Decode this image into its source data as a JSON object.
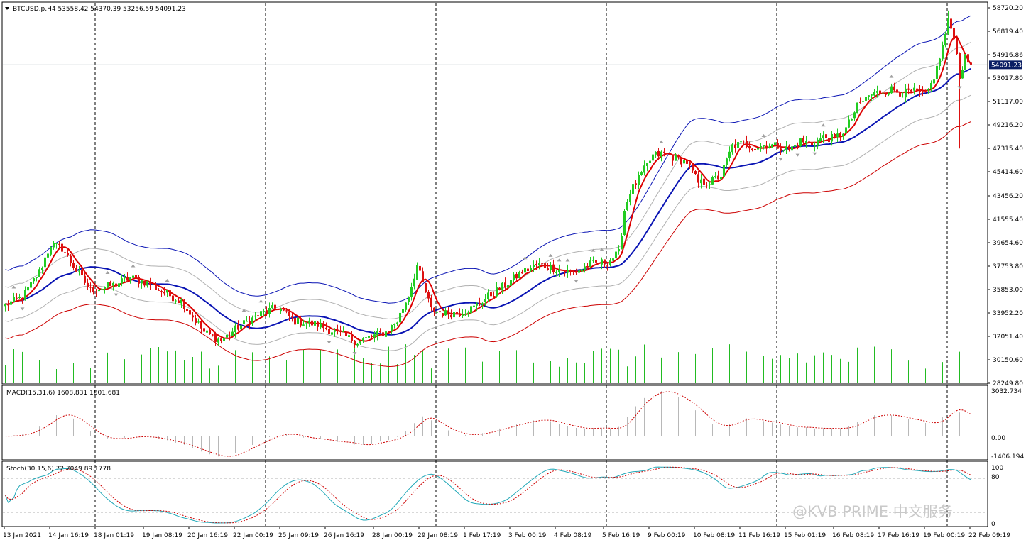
{
  "colors": {
    "up": "#22cc22",
    "down": "#dd1111",
    "ma_fast": "#dd0000",
    "ma_slow": "#0a14b4",
    "envelope_outer_upper": "#0a14b4",
    "envelope_inner": "#b0b0b0",
    "envelope_outer_lower": "#cc0000",
    "volume": "#22bb22",
    "macd_hist": "#b8b8b8",
    "macd_signal": "#cc0000",
    "stoch_main": "#21a8b8",
    "stoch_signal": "#cc0000",
    "fractal": "#a0a0a0",
    "price_box": "#0a1e64"
  },
  "main_panel": {
    "info": "BTCUSD,p,H4  53558.42 54370.39 53256.59 54091.23",
    "current_price": "54091.23"
  },
  "macd_panel": {
    "info": "MACD(15,31,6) 1608.831 1801.681",
    "scale_labels": [
      "3032.734",
      "0.00",
      "-1406.194"
    ]
  },
  "stoch_panel": {
    "info": "Stoch(30,15,6) 72.7049 89.1778",
    "scale_labels": [
      "100",
      "80",
      "0"
    ]
  },
  "watermark": "@KVB PRIME 中文服务",
  "chart_data": [
    {
      "type": "candlestick",
      "title": "BTCUSD,p,H4",
      "ohlc_last": {
        "open": 53558.42,
        "high": 54370.39,
        "low": 53256.59,
        "close": 54091.23
      },
      "x_tick_labels": [
        "13 Jan 2021",
        "14 Jan 16:19",
        "18 Jan 01:19",
        "19 Jan 08:19",
        "20 Jan 16:19",
        "22 Jan 00:19",
        "25 Jan 09:19",
        "26 Jan 16:19",
        "28 Jan 00:19",
        "29 Jan 08:19",
        "1 Feb 17:19",
        "3 Feb 00:19",
        "4 Feb 08:19",
        "5 Feb 16:19",
        "9 Feb 00:19",
        "10 Feb 08:19",
        "11 Feb 16:19",
        "15 Feb 01:19",
        "16 Feb 08:19",
        "17 Feb 16:19",
        "19 Feb 00:19",
        "22 Feb 09:19"
      ],
      "y_tick_labels": [
        "58720.20",
        "56819.40",
        "54916.86",
        "53017.80",
        "51117.00",
        "49216.20",
        "47315.40",
        "45414.60",
        "43456.20",
        "41555.40",
        "39654.60",
        "37753.80",
        "35853.00",
        "33952.20",
        "32051.40",
        "30150.60",
        "28249.80"
      ],
      "ylim": [
        28249.8,
        58720.2
      ],
      "close_path": [
        {
          "bar": 0,
          "price": 34600
        },
        {
          "bar": 6,
          "price": 35200
        },
        {
          "bar": 12,
          "price": 37300
        },
        {
          "bar": 16,
          "price": 39500
        },
        {
          "bar": 20,
          "price": 39200
        },
        {
          "bar": 25,
          "price": 37400
        },
        {
          "bar": 30,
          "price": 35800
        },
        {
          "bar": 38,
          "price": 36200
        },
        {
          "bar": 44,
          "price": 36800
        },
        {
          "bar": 50,
          "price": 36400
        },
        {
          "bar": 56,
          "price": 35600
        },
        {
          "bar": 62,
          "price": 34900
        },
        {
          "bar": 70,
          "price": 32400
        },
        {
          "bar": 76,
          "price": 31700
        },
        {
          "bar": 82,
          "price": 32800
        },
        {
          "bar": 90,
          "price": 33900
        },
        {
          "bar": 96,
          "price": 34400
        },
        {
          "bar": 102,
          "price": 33300
        },
        {
          "bar": 110,
          "price": 33000
        },
        {
          "bar": 118,
          "price": 32200
        },
        {
          "bar": 124,
          "price": 31600
        },
        {
          "bar": 130,
          "price": 32100
        },
        {
          "bar": 134,
          "price": 32400
        },
        {
          "bar": 138,
          "price": 33300
        },
        {
          "bar": 142,
          "price": 35400
        },
        {
          "bar": 145,
          "price": 37800
        },
        {
          "bar": 147,
          "price": 36300
        },
        {
          "bar": 150,
          "price": 34200
        },
        {
          "bar": 155,
          "price": 33900
        },
        {
          "bar": 160,
          "price": 34000
        },
        {
          "bar": 165,
          "price": 34400
        },
        {
          "bar": 170,
          "price": 35300
        },
        {
          "bar": 176,
          "price": 36200
        },
        {
          "bar": 182,
          "price": 37300
        },
        {
          "bar": 188,
          "price": 37900
        },
        {
          "bar": 194,
          "price": 37500
        },
        {
          "bar": 200,
          "price": 37200
        },
        {
          "bar": 206,
          "price": 37900
        },
        {
          "bar": 212,
          "price": 38100
        },
        {
          "bar": 216,
          "price": 38800
        },
        {
          "bar": 218,
          "price": 42300
        },
        {
          "bar": 220,
          "price": 43800
        },
        {
          "bar": 224,
          "price": 45200
        },
        {
          "bar": 228,
          "price": 46700
        },
        {
          "bar": 232,
          "price": 46900
        },
        {
          "bar": 236,
          "price": 46500
        },
        {
          "bar": 240,
          "price": 46200
        },
        {
          "bar": 244,
          "price": 44500
        },
        {
          "bar": 248,
          "price": 44600
        },
        {
          "bar": 252,
          "price": 45100
        },
        {
          "bar": 256,
          "price": 47500
        },
        {
          "bar": 260,
          "price": 47700
        },
        {
          "bar": 264,
          "price": 47400
        },
        {
          "bar": 268,
          "price": 47600
        },
        {
          "bar": 272,
          "price": 47500
        },
        {
          "bar": 276,
          "price": 47200
        },
        {
          "bar": 280,
          "price": 47900
        },
        {
          "bar": 284,
          "price": 47700
        },
        {
          "bar": 288,
          "price": 48200
        },
        {
          "bar": 292,
          "price": 48100
        },
        {
          "bar": 296,
          "price": 48900
        },
        {
          "bar": 300,
          "price": 50700
        },
        {
          "bar": 304,
          "price": 51600
        },
        {
          "bar": 308,
          "price": 51900
        },
        {
          "bar": 312,
          "price": 52100
        },
        {
          "bar": 316,
          "price": 51800
        },
        {
          "bar": 320,
          "price": 51900
        },
        {
          "bar": 324,
          "price": 51600
        },
        {
          "bar": 326,
          "price": 52500
        },
        {
          "bar": 328,
          "price": 53800
        },
        {
          "bar": 330,
          "price": 55600
        },
        {
          "bar": 332,
          "price": 57600
        },
        {
          "bar": 334,
          "price": 56500
        },
        {
          "bar": 336,
          "price": 53200
        },
        {
          "bar": 338,
          "price": 54600
        },
        {
          "bar": 340,
          "price": 54091
        }
      ],
      "volume": "green bars at the bottom of the price panel",
      "macd_panel": {
        "indicator": "MACD(15,31,6)",
        "main": 1608.831,
        "signal": 1801.681,
        "ylim": [
          -1406.194,
          3032.734
        ]
      },
      "stoch_panel": {
        "indicator": "Stoch(30,15,6)",
        "main": 72.7049,
        "signal": 89.1778,
        "ylim": [
          0,
          100
        ],
        "levels": [
          20,
          80
        ]
      }
    }
  ]
}
